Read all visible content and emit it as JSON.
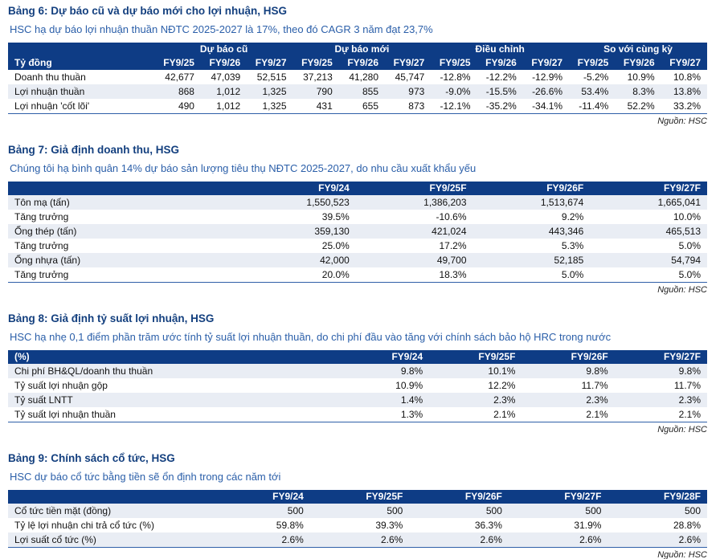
{
  "colors": {
    "header_band": "#0E3C85",
    "stripe_row": "#E9EDF4",
    "title_text": "#14407F",
    "subtitle_text": "#2B5FA9",
    "table_bottom_border": "#2F5FA8"
  },
  "tables": [
    {
      "title": "Bảng 6: Dự báo cũ và dự báo mới cho lợi nhuận, HSG",
      "subtitle": "HSC hạ dự báo lợi nhuận thuần NĐTC 2025-2027 là 17%, theo đó CAGR 3 năm đạt 23,7%",
      "group_headers": [
        {
          "label": "",
          "span": 1
        },
        {
          "label": "Dự báo cũ",
          "span": 3
        },
        {
          "label": "Dự báo mới",
          "span": 3
        },
        {
          "label": "Điều chỉnh",
          "span": 3
        },
        {
          "label": "So với cùng kỳ",
          "span": 3
        }
      ],
      "columns": [
        "Tỷ đồng",
        "FY9/25",
        "FY9/26",
        "FY9/27",
        "FY9/25",
        "FY9/26",
        "FY9/27",
        "FY9/25",
        "FY9/26",
        "FY9/27",
        "FY9/25",
        "FY9/26",
        "FY9/27"
      ],
      "rows": [
        {
          "label": "Doanh thu thuần",
          "indent": false,
          "values": [
            "42,677",
            "47,039",
            "52,515",
            "37,213",
            "41,280",
            "45,747",
            "-12.8%",
            "-12.2%",
            "-12.9%",
            "-5.2%",
            "10.9%",
            "10.8%"
          ]
        },
        {
          "label": "Lợi nhuận thuần",
          "indent": false,
          "values": [
            "868",
            "1,012",
            "1,325",
            "790",
            "855",
            "973",
            "-9.0%",
            "-15.5%",
            "-26.6%",
            "53.4%",
            "8.3%",
            "13.8%"
          ]
        },
        {
          "label": "Lợi nhuận 'cốt lõi'",
          "indent": false,
          "values": [
            "490",
            "1,012",
            "1,325",
            "431",
            "655",
            "873",
            "-12.1%",
            "-35.2%",
            "-34.1%",
            "-11.4%",
            "52.2%",
            "33.2%"
          ]
        }
      ],
      "source": "Nguồn: HSC"
    },
    {
      "title": "Bảng 7: Giả định doanh thu, HSG",
      "subtitle": "Chúng tôi hạ bình quân 14% dự báo sản lượng tiêu thụ NĐTC 2025-2027, do nhu cầu xuất khẩu yếu",
      "group_headers": null,
      "columns": [
        "",
        "FY9/24",
        "FY9/25F",
        "FY9/26F",
        "FY9/27F"
      ],
      "rows": [
        {
          "label": "Tôn mạ (tấn)",
          "indent": false,
          "values": [
            "1,550,523",
            "1,386,203",
            "1,513,674",
            "1,665,041"
          ]
        },
        {
          "label": "Tăng trưởng",
          "indent": true,
          "values": [
            "39.5%",
            "-10.6%",
            "9.2%",
            "10.0%"
          ]
        },
        {
          "label": "Ống thép (tấn)",
          "indent": false,
          "values": [
            "359,130",
            "421,024",
            "443,346",
            "465,513"
          ]
        },
        {
          "label": "Tăng trưởng",
          "indent": true,
          "values": [
            "25.0%",
            "17.2%",
            "5.3%",
            "5.0%"
          ]
        },
        {
          "label": "Ống nhựa (tấn)",
          "indent": false,
          "values": [
            "42,000",
            "49,700",
            "52,185",
            "54,794"
          ]
        },
        {
          "label": "Tăng trưởng",
          "indent": true,
          "values": [
            "20.0%",
            "18.3%",
            "5.0%",
            "5.0%"
          ]
        }
      ],
      "source": "Nguồn: HSC"
    },
    {
      "title": "Bảng 8: Giả định tỷ suất lợi nhuận, HSG",
      "subtitle": "HSC hạ nhẹ 0,1 điểm phần trăm ước tính tỷ suất lợi nhuận thuần, do chi phí đầu vào tăng với chính sách bảo hộ HRC trong nước",
      "group_headers": null,
      "columns": [
        "(%)",
        "FY9/24",
        "FY9/25F",
        "FY9/26F",
        "FY9/27F"
      ],
      "rows": [
        {
          "label": "Chi phí BH&QL/doanh thu thuần",
          "indent": false,
          "values": [
            "9.8%",
            "10.1%",
            "9.8%",
            "9.8%"
          ]
        },
        {
          "label": "Tỷ suất lợi nhuận gộp",
          "indent": false,
          "values": [
            "10.9%",
            "12.2%",
            "11.7%",
            "11.7%"
          ]
        },
        {
          "label": "Tỷ suất LNTT",
          "indent": false,
          "values": [
            "1.4%",
            "2.3%",
            "2.3%",
            "2.3%"
          ]
        },
        {
          "label": "Tỷ suất lợi nhuận thuần",
          "indent": false,
          "values": [
            "1.3%",
            "2.1%",
            "2.1%",
            "2.1%"
          ]
        }
      ],
      "source": "Nguồn: HSC"
    },
    {
      "title": "Bảng 9: Chính sách cổ tức, HSG",
      "subtitle": "HSC dự báo cổ tức bằng tiền sẽ ổn định trong các năm tới",
      "group_headers": null,
      "columns": [
        "",
        "FY9/24",
        "FY9/25F",
        "FY9/26F",
        "FY9/27F",
        "FY9/28F"
      ],
      "rows": [
        {
          "label": "Cổ tức tiền mặt (đồng)",
          "indent": false,
          "values": [
            "500",
            "500",
            "500",
            "500",
            "500"
          ]
        },
        {
          "label": "Tỷ lệ lợi nhuận chi trả cổ tức (%)",
          "indent": false,
          "values": [
            "59.8%",
            "39.3%",
            "36.3%",
            "31.9%",
            "28.8%"
          ]
        },
        {
          "label": "Lợi suất cổ tức (%)",
          "indent": false,
          "values": [
            "2.6%",
            "2.6%",
            "2.6%",
            "2.6%",
            "2.6%"
          ]
        }
      ],
      "source": "Nguồn: HSC"
    }
  ]
}
